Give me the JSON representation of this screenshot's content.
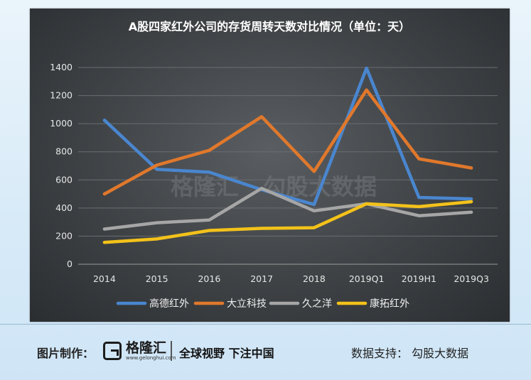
{
  "colors": {
    "gaode": "#4a86cf",
    "dali": "#e0782c",
    "jiuzhiyang": "#a6a6a6",
    "kangtuo": "#f3c21a"
  },
  "watermark": {
    "brand": "格隆汇",
    "source": "勾股大数据"
  },
  "footer": {
    "made_by": "图片制作：",
    "logo_name": "格隆汇",
    "logo_url": "www.gelonghui.com",
    "slogan": "全球视野 下注中国",
    "data_support": "数据支持：  勾股大数据"
  },
  "chart_data": {
    "type": "line",
    "title": "A股四家红外公司的存货周转天数对比情况（单位：天）",
    "categories": [
      "2014",
      "2015",
      "2016",
      "2017",
      "2018",
      "2019Q1",
      "2019H1",
      "2019Q3"
    ],
    "ylim": [
      0,
      1400
    ],
    "yticks": [
      0,
      200,
      400,
      600,
      800,
      1000,
      1200,
      1400
    ],
    "grid": true,
    "legend_position": "bottom",
    "series": [
      {
        "name": "高德红外",
        "color_key": "gaode",
        "values": [
          1025,
          675,
          655,
          530,
          425,
          1395,
          475,
          465
        ]
      },
      {
        "name": "大立科技",
        "color_key": "dali",
        "values": [
          500,
          705,
          810,
          1050,
          660,
          1240,
          750,
          685
        ]
      },
      {
        "name": "久之洋",
        "color_key": "jiuzhiyang",
        "values": [
          250,
          295,
          315,
          540,
          380,
          430,
          345,
          370
        ]
      },
      {
        "name": "康拓红外",
        "color_key": "kangtuo",
        "values": [
          155,
          180,
          240,
          255,
          260,
          430,
          410,
          445
        ]
      }
    ]
  }
}
